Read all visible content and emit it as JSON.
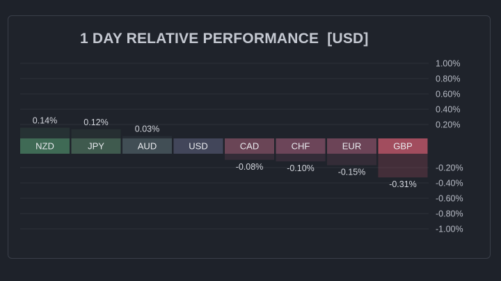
{
  "chart_data": {
    "type": "bar",
    "title": "1 DAY RELATIVE PERFORMANCE  [USD]",
    "unit": "%",
    "categories": [
      "NZD",
      "JPY",
      "AUD",
      "USD",
      "CAD",
      "CHF",
      "EUR",
      "GBP"
    ],
    "values": [
      0.14,
      0.12,
      0.03,
      0.0,
      -0.08,
      -0.1,
      -0.15,
      -0.31
    ],
    "value_labels": [
      "0.14%",
      "0.12%",
      "0.03%",
      "",
      "-0.08%",
      "-0.10%",
      "-0.15%",
      "-0.31%"
    ],
    "tile_colors": [
      "#3f6a55",
      "#3f5a4e",
      "#414e55",
      "#42465a",
      "#6a4556",
      "#6c4559",
      "#6c4457",
      "#a24d5e"
    ],
    "positive_ticks": [
      "1.00%",
      "0.80%",
      "0.60%",
      "0.40%",
      "0.20%"
    ],
    "negative_ticks": [
      "-0.20%",
      "-0.40%",
      "-0.60%",
      "-0.80%",
      "-1.00%"
    ],
    "ylim": [
      -1.0,
      1.0
    ],
    "grid": true
  }
}
